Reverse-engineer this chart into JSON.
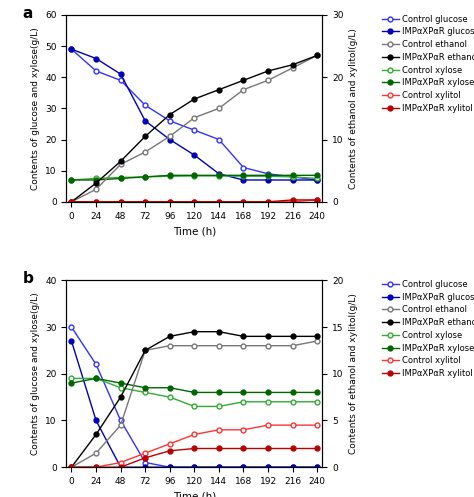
{
  "time": [
    0,
    24,
    48,
    72,
    96,
    120,
    144,
    168,
    192,
    216,
    240
  ],
  "panel_a": {
    "control_glucose": [
      49,
      42,
      39,
      31,
      26,
      23,
      20,
      11,
      9,
      8,
      7
    ],
    "imp_glucose": [
      49,
      46,
      41,
      26,
      20,
      15,
      9,
      7,
      7,
      7,
      7
    ],
    "control_ethanol": [
      0,
      2,
      6,
      8,
      10.5,
      13.5,
      15,
      18,
      19.5,
      21.5,
      23.5
    ],
    "imp_ethanol": [
      0,
      3,
      6.5,
      10.5,
      14,
      16.5,
      18,
      19.5,
      21,
      22,
      23.5
    ],
    "control_xylose": [
      7,
      7.5,
      7.8,
      8,
      8.2,
      8.3,
      8.3,
      8.2,
      8.2,
      8,
      7.5
    ],
    "imp_xylose": [
      7,
      7,
      7.5,
      8,
      8.5,
      8.5,
      8.5,
      8.5,
      8.5,
      8.5,
      8.5
    ],
    "control_xylitol": [
      0,
      0,
      0,
      0,
      0,
      0,
      0,
      0,
      0,
      0,
      0.3
    ],
    "imp_xylitol": [
      0,
      0,
      0,
      0,
      0,
      0,
      0,
      0,
      0,
      0.3,
      0.3
    ],
    "ylim_left": [
      0,
      60
    ],
    "ylim_right": [
      0,
      30
    ],
    "yticks_left": [
      0,
      10,
      20,
      30,
      40,
      50,
      60
    ],
    "yticks_right": [
      0,
      10,
      20,
      30
    ],
    "ylabel_left": "Contents of glucose and xylose(g/L)",
    "ylabel_right": "Contents of ethanol and xylitol(g/L)"
  },
  "panel_b": {
    "control_glucose": [
      30,
      22,
      10,
      1,
      0,
      0,
      0,
      0,
      0,
      0,
      0
    ],
    "imp_glucose": [
      27,
      10,
      0,
      0,
      0,
      0,
      0,
      0,
      0,
      0,
      0
    ],
    "control_ethanol": [
      0,
      1.5,
      4.5,
      12.5,
      13,
      13,
      13,
      13,
      13,
      13,
      13.5
    ],
    "imp_ethanol": [
      0,
      3.5,
      7.5,
      12.5,
      14,
      14.5,
      14.5,
      14,
      14,
      14,
      14
    ],
    "control_xylose": [
      19,
      19,
      17,
      16,
      15,
      13,
      13,
      14,
      14,
      14,
      14
    ],
    "imp_xylose": [
      18,
      19,
      18,
      17,
      17,
      16,
      16,
      16,
      16,
      16,
      16
    ],
    "control_xylitol": [
      0,
      0,
      0.5,
      1.5,
      2.5,
      3.5,
      4,
      4,
      4.5,
      4.5,
      4.5
    ],
    "imp_xylitol": [
      0,
      0,
      0,
      1,
      1.75,
      2,
      2,
      2,
      2,
      2,
      2
    ],
    "ylim_left": [
      0,
      40
    ],
    "ylim_right": [
      0,
      20
    ],
    "yticks_left": [
      0,
      10,
      20,
      30,
      40
    ],
    "yticks_right": [
      0,
      5,
      10,
      15,
      20
    ],
    "ylabel_left": "Contents of glucose and xylose(g/L)",
    "ylabel_right": "Contents of ethanol and xylitol(g/L)"
  },
  "xlabel": "Time (h)",
  "xticks": [
    0,
    24,
    48,
    72,
    96,
    120,
    144,
    168,
    192,
    216,
    240
  ],
  "colors": {
    "blue_open": "#3333ff",
    "blue_filled": "#0000bb",
    "black_open": "#777777",
    "black_filled": "#000000",
    "green_open": "#33aa33",
    "green_filled": "#006600",
    "red_open": "#ff3333",
    "red_filled": "#bb0000"
  },
  "legend_labels": [
    "Control glucose",
    "IMPαXPαR glucose",
    "Control ethanol",
    "IMPαXPαR ethanol",
    "Control xylose",
    "IMPαXPαR xylose",
    "Control xylitol",
    "IMPαXPαR xylitol"
  ]
}
